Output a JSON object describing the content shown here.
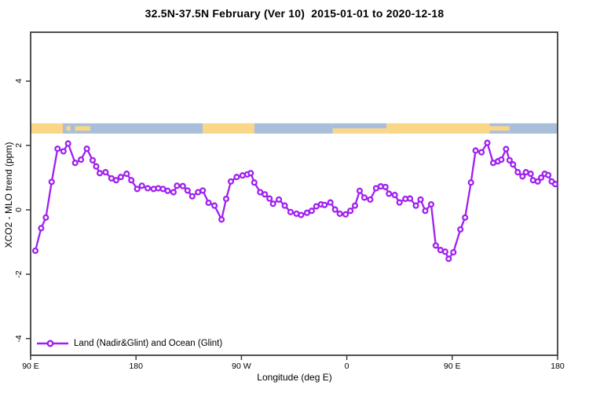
{
  "page": {
    "background": "#ffffff"
  },
  "colors": {
    "axis": "#3c3c3c",
    "text": "#000000",
    "series_purple": "#A020F0",
    "land": "#FAD687",
    "ocean": "#A9BED9"
  },
  "chart_data": {
    "type": "line",
    "title": "32.5N-37.5N February (Ver 10)  2015-01-01 to 2020-12-18",
    "xlabel": "Longitude (deg E)",
    "ylabel": "XCO2 - MLO trend (ppm)",
    "xlim": [
      90,
      540
    ],
    "ylim": [
      -4.52,
      5.52
    ],
    "grid": false,
    "x_ticks": [
      {
        "value": 90,
        "label": "90 E"
      },
      {
        "value": 180,
        "label": "180"
      },
      {
        "value": 270,
        "label": "90 W"
      },
      {
        "value": 360,
        "label": "0"
      },
      {
        "value": 450,
        "label": "90 E"
      },
      {
        "value": 540,
        "label": "180"
      }
    ],
    "y_ticks": [
      {
        "value": -4,
        "label": "-4"
      },
      {
        "value": -2,
        "label": "-2"
      },
      {
        "value": 0,
        "label": "0"
      },
      {
        "value": 2,
        "label": "2"
      },
      {
        "value": 4,
        "label": "4"
      }
    ],
    "legend": {
      "position": "bottom-left",
      "label": "Land (Nadir&Glint) and Ocean (Glint)"
    },
    "series": [
      {
        "name": "Land (Nadir&Glint) and Ocean (Glint)",
        "color": "#A020F0",
        "marker": "open-circle",
        "points": [
          [
            94,
            -1.27
          ],
          [
            99,
            -0.57
          ],
          [
            103,
            -0.24
          ],
          [
            108,
            0.87
          ],
          [
            113,
            1.9
          ],
          [
            118,
            1.82
          ],
          [
            122,
            2.06
          ],
          [
            128,
            1.46
          ],
          [
            133,
            1.56
          ],
          [
            138,
            1.9
          ],
          [
            143,
            1.54
          ],
          [
            146,
            1.35
          ],
          [
            149,
            1.14
          ],
          [
            154,
            1.17
          ],
          [
            159,
            0.98
          ],
          [
            163,
            0.92
          ],
          [
            167,
            1.02
          ],
          [
            172,
            1.12
          ],
          [
            176,
            0.92
          ],
          [
            181,
            0.65
          ],
          [
            185,
            0.75
          ],
          [
            190,
            0.67
          ],
          [
            195,
            0.65
          ],
          [
            199,
            0.67
          ],
          [
            203,
            0.65
          ],
          [
            207,
            0.59
          ],
          [
            212,
            0.55
          ],
          [
            215,
            0.75
          ],
          [
            220,
            0.74
          ],
          [
            224,
            0.6
          ],
          [
            228,
            0.42
          ],
          [
            233,
            0.55
          ],
          [
            237,
            0.6
          ],
          [
            242,
            0.22
          ],
          [
            247,
            0.13
          ],
          [
            253,
            -0.3
          ],
          [
            257,
            0.34
          ],
          [
            261,
            0.88
          ],
          [
            266,
            1.02
          ],
          [
            271,
            1.07
          ],
          [
            275,
            1.1
          ],
          [
            278,
            1.14
          ],
          [
            281,
            0.85
          ],
          [
            286,
            0.55
          ],
          [
            290,
            0.48
          ],
          [
            294,
            0.35
          ],
          [
            297,
            0.19
          ],
          [
            302,
            0.32
          ],
          [
            307,
            0.13
          ],
          [
            312,
            -0.07
          ],
          [
            317,
            -0.12
          ],
          [
            321,
            -0.16
          ],
          [
            326,
            -0.09
          ],
          [
            330,
            -0.03
          ],
          [
            334,
            0.11
          ],
          [
            338,
            0.17
          ],
          [
            341,
            0.15
          ],
          [
            346,
            0.23
          ],
          [
            350,
            0.01
          ],
          [
            354,
            -0.12
          ],
          [
            359,
            -0.14
          ],
          [
            363,
            -0.03
          ],
          [
            367,
            0.13
          ],
          [
            371,
            0.59
          ],
          [
            375,
            0.38
          ],
          [
            380,
            0.32
          ],
          [
            385,
            0.67
          ],
          [
            389,
            0.73
          ],
          [
            393,
            0.71
          ],
          [
            396,
            0.5
          ],
          [
            401,
            0.46
          ],
          [
            405,
            0.23
          ],
          [
            410,
            0.34
          ],
          [
            414,
            0.35
          ],
          [
            419,
            0.13
          ],
          [
            423,
            0.32
          ],
          [
            427,
            -0.03
          ],
          [
            432,
            0.17
          ],
          [
            436,
            -1.11
          ],
          [
            440,
            -1.25
          ],
          [
            444,
            -1.3
          ],
          [
            447,
            -1.52
          ],
          [
            451,
            -1.32
          ],
          [
            457,
            -0.61
          ],
          [
            461,
            -0.24
          ],
          [
            466,
            0.85
          ],
          [
            470,
            1.84
          ],
          [
            475,
            1.79
          ],
          [
            480,
            2.08
          ],
          [
            485,
            1.46
          ],
          [
            489,
            1.51
          ],
          [
            492,
            1.56
          ],
          [
            496,
            1.89
          ],
          [
            499,
            1.54
          ],
          [
            502,
            1.41
          ],
          [
            506,
            1.17
          ],
          [
            510,
            1.04
          ],
          [
            513,
            1.17
          ],
          [
            517,
            1.12
          ],
          [
            519,
            0.92
          ],
          [
            523,
            0.88
          ],
          [
            526,
            1.0
          ],
          [
            529,
            1.12
          ],
          [
            532,
            1.08
          ],
          [
            535,
            0.88
          ],
          [
            538,
            0.8
          ]
        ]
      }
    ],
    "map_strip": {
      "description": "coastline band 32.5N-37.5N (land/ocean along longitude)",
      "top_value": 2.69,
      "bottom_value": 2.37,
      "land_color": "#FAD687",
      "ocean_color": "#A9BED9",
      "segments": [
        {
          "from": 90,
          "to": 117.5,
          "type": "land"
        },
        {
          "from": 117.5,
          "to": 120.5,
          "type": "ocean"
        },
        {
          "from": 120.5,
          "to": 124,
          "type": "isles"
        },
        {
          "from": 124,
          "to": 128,
          "type": "ocean"
        },
        {
          "from": 128,
          "to": 141,
          "type": "isles"
        },
        {
          "from": 141,
          "to": 237,
          "type": "ocean"
        },
        {
          "from": 237,
          "to": 281,
          "type": "land"
        },
        {
          "from": 281,
          "to": 348,
          "type": "ocean"
        },
        {
          "from": 348,
          "to": 394,
          "type": "coast"
        },
        {
          "from": 394,
          "to": 482,
          "type": "land"
        },
        {
          "from": 482,
          "to": 499,
          "type": "isles"
        },
        {
          "from": 499,
          "to": 540,
          "type": "ocean"
        }
      ]
    }
  }
}
